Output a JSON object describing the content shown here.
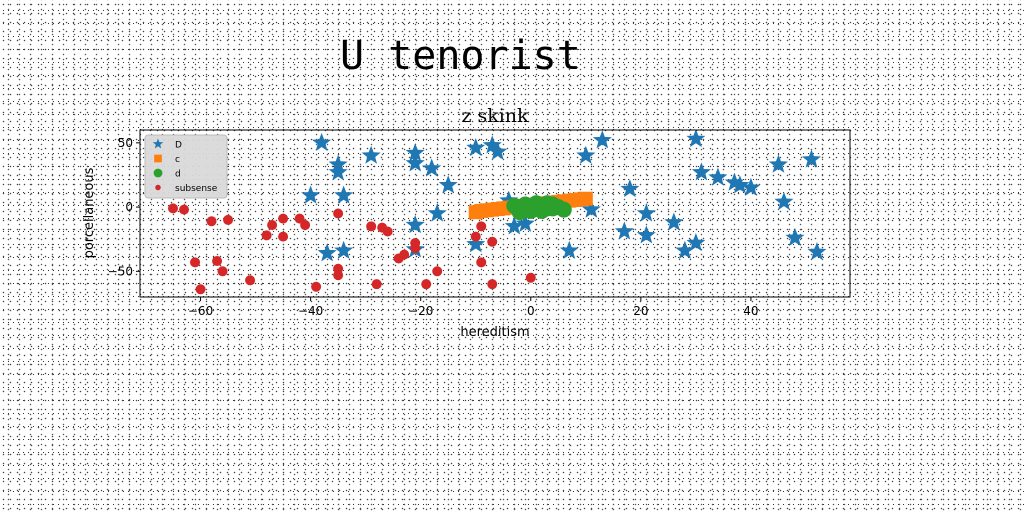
{
  "page": {
    "title": "U tenorist"
  },
  "chart_data": {
    "type": "scatter",
    "title": "z skink",
    "xlabel": "hereditism",
    "ylabel": "porcellaneous",
    "xlim": [
      -71,
      58
    ],
    "ylim": [
      -70,
      60
    ],
    "xticks": [
      -60,
      -40,
      -20,
      0,
      20,
      40
    ],
    "yticks": [
      -50,
      0,
      50
    ],
    "grid": false,
    "legend_position": "top-left",
    "series": [
      {
        "name": "D",
        "marker": "star",
        "color": "#1f77b4",
        "points": [
          [
            -38,
            50
          ],
          [
            -35,
            33
          ],
          [
            -35,
            27
          ],
          [
            -34,
            9
          ],
          [
            -29,
            40
          ],
          [
            -40,
            9
          ],
          [
            -21,
            42
          ],
          [
            -21,
            34
          ],
          [
            -18,
            30
          ],
          [
            -15,
            17
          ],
          [
            -17,
            -5
          ],
          [
            -21,
            -14
          ],
          [
            -21,
            -33
          ],
          [
            -37,
            -36
          ],
          [
            -34,
            -34
          ],
          [
            -10,
            46
          ],
          [
            -7,
            48
          ],
          [
            -6,
            43
          ],
          [
            -10,
            -29
          ],
          [
            -4,
            5
          ],
          [
            -3,
            -15
          ],
          [
            -1,
            -13
          ],
          [
            10,
            40
          ],
          [
            13,
            52
          ],
          [
            18,
            14
          ],
          [
            21,
            -5
          ],
          [
            26,
            -12
          ],
          [
            17,
            -19
          ],
          [
            21,
            -22
          ],
          [
            28,
            -34
          ],
          [
            30,
            -28
          ],
          [
            11,
            -2
          ],
          [
            7,
            -34
          ],
          [
            30,
            53
          ],
          [
            31,
            27
          ],
          [
            34,
            23
          ],
          [
            37,
            19
          ],
          [
            38,
            17
          ],
          [
            40,
            15
          ],
          [
            45,
            33
          ],
          [
            46,
            4
          ],
          [
            48,
            -24
          ],
          [
            51,
            37
          ],
          [
            52,
            -35
          ]
        ]
      },
      {
        "name": "c",
        "marker": "square",
        "color": "#ff7f0e",
        "points": [
          [
            -10,
            -4
          ],
          [
            -9,
            -3
          ],
          [
            -8,
            -2.5
          ],
          [
            -7,
            -2
          ],
          [
            -6,
            -1.5
          ],
          [
            -5,
            -1
          ],
          [
            -4,
            -0.5
          ],
          [
            -3,
            0
          ],
          [
            -2,
            0.5
          ],
          [
            -1,
            1
          ],
          [
            0,
            1.5
          ],
          [
            1,
            2
          ],
          [
            2,
            2.5
          ],
          [
            3,
            3
          ],
          [
            4,
            3.5
          ],
          [
            5,
            4
          ],
          [
            6,
            4.5
          ],
          [
            7,
            5
          ],
          [
            8,
            5.5
          ],
          [
            9,
            6
          ],
          [
            10,
            6.5
          ]
        ]
      },
      {
        "name": "d",
        "marker": "circle",
        "color": "#2ca02c",
        "points": [
          [
            -3,
            1
          ],
          [
            -2,
            -1
          ],
          [
            -1,
            2
          ],
          [
            0,
            0
          ],
          [
            1,
            3
          ],
          [
            0,
            -3
          ],
          [
            2,
            1
          ],
          [
            3,
            -1
          ],
          [
            4,
            2
          ],
          [
            -2,
            -4
          ],
          [
            5,
            0
          ],
          [
            6,
            -2
          ],
          [
            -1,
            -2
          ],
          [
            1,
            -1
          ],
          [
            2,
            -3
          ],
          [
            3,
            3
          ],
          [
            4,
            -1
          ]
        ]
      },
      {
        "name": "subsense",
        "marker": "circle",
        "color": "#d62728",
        "points": [
          [
            -65,
            -1
          ],
          [
            -63,
            -2
          ],
          [
            -58,
            -11
          ],
          [
            -55,
            -10
          ],
          [
            -48,
            -22
          ],
          [
            -47,
            -14
          ],
          [
            -45,
            -9
          ],
          [
            -45,
            -23
          ],
          [
            -42,
            -9
          ],
          [
            -41,
            -14
          ],
          [
            -35,
            -5
          ],
          [
            -29,
            -15
          ],
          [
            -27,
            -16
          ],
          [
            -26,
            -19
          ],
          [
            -24,
            -40
          ],
          [
            -23,
            -37
          ],
          [
            -21,
            -28
          ],
          [
            -21,
            -32
          ],
          [
            -61,
            -43
          ],
          [
            -57,
            -42
          ],
          [
            -56,
            -50
          ],
          [
            -60,
            -64
          ],
          [
            -51,
            -57
          ],
          [
            -39,
            -62
          ],
          [
            -35,
            -48
          ],
          [
            -35,
            -53
          ],
          [
            -28,
            -60
          ],
          [
            -19,
            -60
          ],
          [
            -17,
            -50
          ],
          [
            -10,
            -23
          ],
          [
            -9,
            -15
          ],
          [
            -9,
            -43
          ],
          [
            -7,
            -27
          ],
          [
            -7,
            -60
          ],
          [
            0,
            -55
          ]
        ]
      }
    ]
  }
}
